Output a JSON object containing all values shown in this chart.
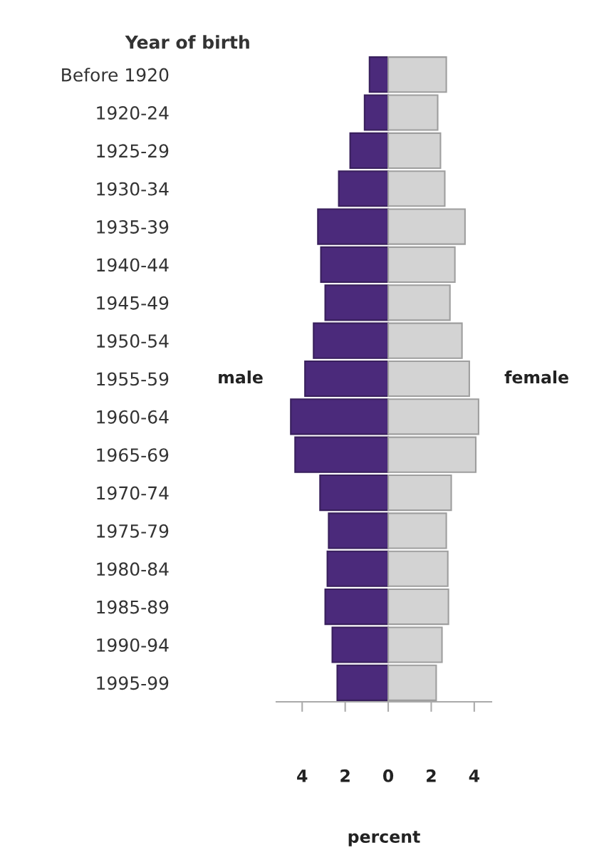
{
  "chart_data": {
    "type": "bar",
    "orientation": "horizontal",
    "stacked": true,
    "ylabel": "Year of birth",
    "xlabel": "percent",
    "categories": [
      "Before 1920",
      "1920-24",
      "1925-29",
      "1930-34",
      "1935-39",
      "1940-44",
      "1945-49",
      "1950-54",
      "1955-59",
      "1960-64",
      "1965-69",
      "1970-74",
      "1975-79",
      "1980-84",
      "1985-89",
      "1990-94",
      "1995-99"
    ],
    "series": [
      {
        "name": "male",
        "color": "#4b2a7b",
        "values": [
          -0.87,
          -1.1,
          -1.77,
          -2.3,
          -3.27,
          -3.13,
          -2.93,
          -3.47,
          -3.87,
          -4.53,
          -4.33,
          -3.17,
          -2.77,
          -2.83,
          -2.93,
          -2.6,
          -2.37
        ]
      },
      {
        "name": "female",
        "color": "#d3d3d3",
        "values": [
          2.7,
          2.3,
          2.43,
          2.63,
          3.57,
          3.1,
          2.87,
          3.43,
          3.77,
          4.2,
          4.07,
          2.93,
          2.7,
          2.77,
          2.8,
          2.5,
          2.23
        ]
      }
    ],
    "xlim": [
      -5.2,
      4.8
    ],
    "xticks": [
      {
        "value": -4,
        "label": "4"
      },
      {
        "value": -2,
        "label": "2"
      },
      0,
      2,
      4
    ],
    "grid": false,
    "legend": false
  }
}
